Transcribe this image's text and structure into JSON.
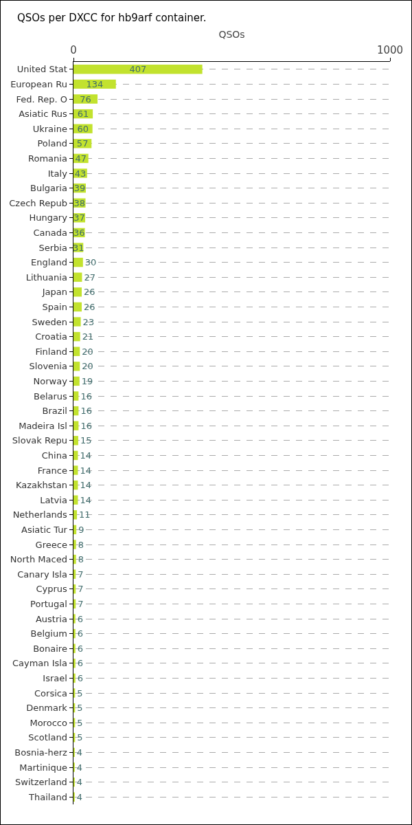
{
  "chart_data": {
    "type": "bar",
    "orientation": "horizontal",
    "title": "QSOs per DXCC for hb9arf container.",
    "xlabel": "QSOs",
    "categories": [
      "United Stat",
      "European Ru",
      "Fed. Rep. O",
      "Asiatic Rus",
      "Ukraine",
      "Poland",
      "Romania",
      "Italy",
      "Bulgaria",
      "Czech Repub",
      "Hungary",
      "Canada",
      "Serbia",
      "England",
      "Lithuania",
      "Japan",
      "Spain",
      "Sweden",
      "Croatia",
      "Finland",
      "Slovenia",
      "Norway",
      "Belarus",
      "Brazil",
      "Madeira Isl",
      "Slovak Repu",
      "China",
      "France",
      "Kazakhstan",
      "Latvia",
      "Netherlands",
      "Asiatic Tur",
      "Greece",
      "North Maced",
      "Canary Isla",
      "Cyprus",
      "Portugal",
      "Austria",
      "Belgium",
      "Bonaire",
      "Cayman Isla",
      "Israel",
      "Corsica",
      "Denmark",
      "Morocco",
      "Scotland",
      "Bosnia-herz",
      "Martinique",
      "Switzerland",
      "Thailand"
    ],
    "values": [
      407,
      134,
      76,
      61,
      60,
      57,
      47,
      43,
      39,
      38,
      37,
      36,
      31,
      30,
      27,
      26,
      26,
      23,
      21,
      20,
      20,
      19,
      16,
      16,
      16,
      15,
      14,
      14,
      14,
      14,
      11,
      9,
      8,
      8,
      7,
      7,
      7,
      6,
      6,
      6,
      6,
      6,
      5,
      5,
      5,
      5,
      4,
      4,
      4,
      4
    ],
    "color": "#c2e22e",
    "xlim": [
      0,
      1000
    ],
    "xticks": [
      0,
      1000
    ],
    "grid": true,
    "data_labels": true
  }
}
